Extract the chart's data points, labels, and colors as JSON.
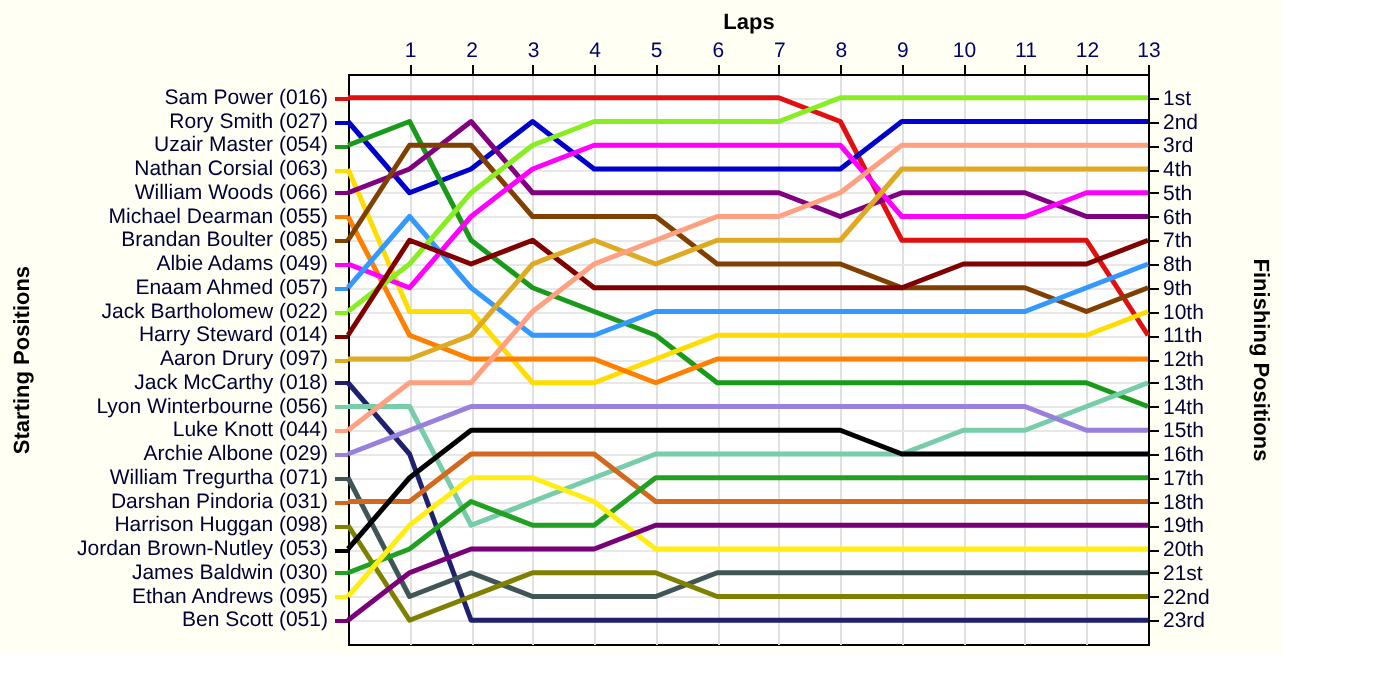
{
  "chart_data": {
    "type": "line",
    "xlabel": "Laps",
    "ylabel": "Finishing Positions",
    "annotations": [
      "Starting Positions"
    ],
    "x": [
      0,
      1,
      2,
      3,
      4,
      5,
      6,
      7,
      8,
      9,
      10,
      11,
      12,
      13
    ],
    "xlim": [
      0,
      13
    ],
    "xticks": [
      1,
      2,
      3,
      4,
      5,
      6,
      7,
      8,
      9,
      10,
      11,
      12,
      13
    ],
    "ylim": [
      24,
      0
    ],
    "yticks": [
      {
        "value": 1,
        "label": "1st"
      },
      {
        "value": 2,
        "label": "2nd"
      },
      {
        "value": 3,
        "label": "3rd"
      },
      {
        "value": 4,
        "label": "4th"
      },
      {
        "value": 5,
        "label": "5th"
      },
      {
        "value": 6,
        "label": "6th"
      },
      {
        "value": 7,
        "label": "7th"
      },
      {
        "value": 8,
        "label": "8th"
      },
      {
        "value": 9,
        "label": "9th"
      },
      {
        "value": 10,
        "label": "10th"
      },
      {
        "value": 11,
        "label": "11th"
      },
      {
        "value": 12,
        "label": "12th"
      },
      {
        "value": 13,
        "label": "13th"
      },
      {
        "value": 14,
        "label": "14th"
      },
      {
        "value": 15,
        "label": "15th"
      },
      {
        "value": 16,
        "label": "16th"
      },
      {
        "value": 17,
        "label": "17th"
      },
      {
        "value": 18,
        "label": "18th"
      },
      {
        "value": 19,
        "label": "19th"
      },
      {
        "value": 20,
        "label": "20th"
      },
      {
        "value": 21,
        "label": "21st"
      },
      {
        "value": 22,
        "label": "22nd"
      },
      {
        "value": 23,
        "label": "23rd"
      }
    ],
    "grid": true,
    "legend": "left",
    "marker": "none",
    "line_style": "solid",
    "series": [
      {
        "name": "Sam Power (016)",
        "color": "#e01010",
        "values": [
          1,
          1,
          1,
          1,
          1,
          1,
          1,
          1,
          2,
          7,
          7,
          7,
          7,
          11
        ]
      },
      {
        "name": "Rory Smith (027)",
        "color": "#0000cc",
        "values": [
          2,
          5,
          4,
          2,
          4,
          4,
          4,
          4,
          4,
          2,
          2,
          2,
          2,
          2
        ]
      },
      {
        "name": "Uzair Master (054)",
        "color": "#1a9a1a",
        "values": [
          3,
          2,
          7,
          9,
          10,
          11,
          13,
          13,
          13,
          13,
          13,
          13,
          13,
          14
        ]
      },
      {
        "name": "Nathan Corsial (063)",
        "color": "#ffdd00",
        "values": [
          4,
          10,
          10,
          13,
          13,
          12,
          11,
          11,
          11,
          11,
          11,
          11,
          11,
          10
        ]
      },
      {
        "name": "William Woods (066)",
        "color": "#800080",
        "values": [
          5,
          4,
          2,
          5,
          5,
          5,
          5,
          5,
          6,
          5,
          5,
          5,
          6,
          6
        ]
      },
      {
        "name": "Michael Dearman (055)",
        "color": "#ff8000",
        "values": [
          6,
          11,
          12,
          12,
          12,
          13,
          12,
          12,
          12,
          12,
          12,
          12,
          12,
          12
        ]
      },
      {
        "name": "Brandan Boulter (085)",
        "color": "#804000",
        "values": [
          7,
          3,
          3,
          6,
          6,
          6,
          8,
          8,
          8,
          9,
          9,
          9,
          10,
          9
        ]
      },
      {
        "name": "Albie Adams (049)",
        "color": "#ff00ff",
        "values": [
          8,
          9,
          6,
          4,
          3,
          3,
          3,
          3,
          3,
          6,
          6,
          6,
          5,
          5
        ]
      },
      {
        "name": "Enaam Ahmed (057)",
        "color": "#3399ff",
        "values": [
          9,
          6,
          9,
          11,
          11,
          10,
          10,
          10,
          10,
          10,
          10,
          10,
          9,
          8
        ]
      },
      {
        "name": "Jack Bartholomew (022)",
        "color": "#88ee22",
        "values": [
          10,
          8,
          5,
          3,
          2,
          2,
          2,
          2,
          1,
          1,
          1,
          1,
          1,
          1
        ]
      },
      {
        "name": "Harry Steward (014)",
        "color": "#800000",
        "values": [
          11,
          7,
          8,
          7,
          9,
          9,
          9,
          9,
          9,
          9,
          8,
          8,
          8,
          7
        ]
      },
      {
        "name": "Aaron Drury (097)",
        "color": "#ddaa22",
        "values": [
          12,
          12,
          11,
          8,
          7,
          8,
          7,
          7,
          7,
          4,
          4,
          4,
          4,
          4
        ]
      },
      {
        "name": "Jack McCarthy (018)",
        "color": "#202070",
        "values": [
          13,
          16,
          23,
          23,
          23,
          23,
          23,
          23,
          23,
          23,
          23,
          23,
          23,
          23
        ]
      },
      {
        "name": "Lyon Winterbourne (056)",
        "color": "#77ccaa",
        "values": [
          14,
          14,
          19,
          18,
          17,
          16,
          16,
          16,
          16,
          16,
          15,
          15,
          14,
          13
        ]
      },
      {
        "name": "Luke Knott (044)",
        "color": "#ffa080",
        "values": [
          15,
          13,
          13,
          10,
          8,
          7,
          6,
          6,
          5,
          3,
          3,
          3,
          3,
          3
        ]
      },
      {
        "name": "Archie Albone (029)",
        "color": "#9980dd",
        "values": [
          16,
          15,
          14,
          14,
          14,
          14,
          14,
          14,
          14,
          14,
          14,
          14,
          15,
          15
        ]
      },
      {
        "name": "William Tregurtha (071)",
        "color": "#405555",
        "values": [
          17,
          22,
          21,
          22,
          22,
          22,
          21,
          21,
          21,
          21,
          21,
          21,
          21,
          21
        ]
      },
      {
        "name": "Darshan Pindoria (031)",
        "color": "#d2691e",
        "values": [
          18,
          18,
          16,
          16,
          16,
          18,
          18,
          18,
          18,
          18,
          18,
          18,
          18,
          18
        ]
      },
      {
        "name": "Harrison Huggan (098)",
        "color": "#808000",
        "values": [
          19,
          23,
          22,
          21,
          21,
          21,
          22,
          22,
          22,
          22,
          22,
          22,
          22,
          22
        ]
      },
      {
        "name": "Jordan Brown-Nutley (053)",
        "color": "#000000",
        "values": [
          20,
          17,
          15,
          15,
          15,
          15,
          15,
          15,
          15,
          16,
          16,
          16,
          16,
          16
        ]
      },
      {
        "name": "James Baldwin (030)",
        "color": "#22a022",
        "values": [
          21,
          20,
          18,
          19,
          19,
          17,
          17,
          17,
          17,
          17,
          17,
          17,
          17,
          17
        ]
      },
      {
        "name": "Ethan Andrews (095)",
        "color": "#ffee10",
        "values": [
          22,
          19,
          17,
          17,
          18,
          20,
          20,
          20,
          20,
          20,
          20,
          20,
          20,
          20
        ]
      },
      {
        "name": "Ben Scott (051)",
        "color": "#7a007a",
        "values": [
          23,
          21,
          20,
          20,
          20,
          19,
          19,
          19,
          19,
          19,
          19,
          19,
          19,
          19
        ]
      }
    ]
  }
}
